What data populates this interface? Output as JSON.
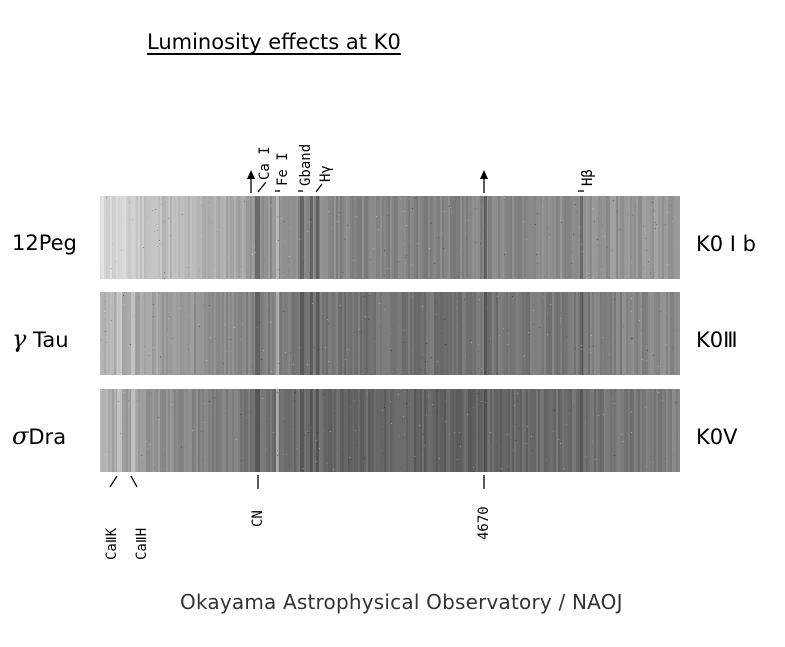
{
  "title": "Luminosity effects at K0",
  "stars": [
    {
      "name_prefix": "",
      "name": "12Peg",
      "type": "K0 I b",
      "seed": 11,
      "base": 0.62
    },
    {
      "name_prefix": "γ",
      "name": "Tau",
      "type": "K0Ⅲ",
      "seed": 27,
      "base": 0.55
    },
    {
      "name_prefix": "σ",
      "name": "Dra",
      "type": "K0Ⅴ",
      "seed": 43,
      "base": 0.5
    }
  ],
  "top_labels": {
    "ca1": "Ca I",
    "fe1": "Fe I",
    "gband": "Gband",
    "hgamma": "Hγ",
    "hbeta": "Hβ"
  },
  "bottom_labels": {
    "ca2k": "CaⅡK",
    "ca2h": "CaⅡH",
    "cn": "CN",
    "w4670": "4670"
  },
  "credit": "Okayama Astrophysical Observatory / NAOJ"
}
